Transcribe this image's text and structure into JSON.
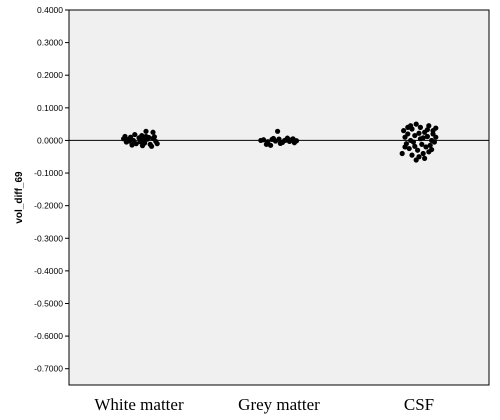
{
  "chart_data": {
    "type": "scatter",
    "ylabel": "vol_diff_69",
    "xlabel": "",
    "title": "",
    "categories": [
      "White matter",
      "Grey matter",
      "CSF"
    ],
    "ylim": [
      -0.75,
      0.4
    ],
    "yticks": [
      "0.4000",
      "0.3000",
      "0.2000",
      "0.1000",
      "0.0000",
      "-0.1000",
      "-0.2000",
      "-0.3000",
      "-0.4000",
      "-0.5000",
      "-0.6000",
      "-0.7000"
    ],
    "reference_line": 0.0,
    "grid": false,
    "points": [
      [
        {
          "jitter": -0.22,
          "y": 0.005
        },
        {
          "jitter": -0.18,
          "y": -0.005
        },
        {
          "jitter": -0.12,
          "y": 0.01
        },
        {
          "jitter": -0.08,
          "y": 0.0
        },
        {
          "jitter": -0.04,
          "y": -0.01
        },
        {
          "jitter": 0.0,
          "y": 0.008
        },
        {
          "jitter": 0.04,
          "y": 0.015
        },
        {
          "jitter": 0.08,
          "y": -0.008
        },
        {
          "jitter": 0.12,
          "y": 0.004
        },
        {
          "jitter": 0.16,
          "y": -0.012
        },
        {
          "jitter": 0.2,
          "y": 0.006
        },
        {
          "jitter": 0.24,
          "y": -0.003
        },
        {
          "jitter": -0.2,
          "y": 0.012
        },
        {
          "jitter": -0.1,
          "y": -0.014
        },
        {
          "jitter": 0.02,
          "y": -0.004
        },
        {
          "jitter": 0.1,
          "y": 0.012
        },
        {
          "jitter": 0.18,
          "y": -0.018
        },
        {
          "jitter": -0.14,
          "y": -0.002
        },
        {
          "jitter": 0.06,
          "y": 0.003
        },
        {
          "jitter": 0.14,
          "y": 0.009
        },
        {
          "jitter": -0.06,
          "y": 0.018
        },
        {
          "jitter": 0.22,
          "y": 0.011
        },
        {
          "jitter": 0.26,
          "y": -0.01
        },
        {
          "jitter": 0.1,
          "y": 0.028
        },
        {
          "jitter": 0.2,
          "y": 0.025
        },
        {
          "jitter": 0.05,
          "y": -0.016
        },
        {
          "jitter": -0.16,
          "y": 0.002
        }
      ],
      [
        {
          "jitter": -0.22,
          "y": 0.002
        },
        {
          "jitter": -0.16,
          "y": -0.004
        },
        {
          "jitter": -0.1,
          "y": 0.003
        },
        {
          "jitter": -0.05,
          "y": -0.002
        },
        {
          "jitter": 0.0,
          "y": 0.004
        },
        {
          "jitter": 0.05,
          "y": -0.006
        },
        {
          "jitter": 0.1,
          "y": 0.001
        },
        {
          "jitter": 0.15,
          "y": -0.003
        },
        {
          "jitter": 0.2,
          "y": 0.005
        },
        {
          "jitter": 0.25,
          "y": -0.001
        },
        {
          "jitter": -0.18,
          "y": -0.012
        },
        {
          "jitter": -0.08,
          "y": 0.006
        },
        {
          "jitter": 0.02,
          "y": -0.009
        },
        {
          "jitter": 0.12,
          "y": 0.007
        },
        {
          "jitter": 0.22,
          "y": -0.007
        },
        {
          "jitter": -0.02,
          "y": 0.028
        },
        {
          "jitter": -0.12,
          "y": -0.015
        },
        {
          "jitter": 0.08,
          "y": 0.0
        },
        {
          "jitter": 0.18,
          "y": 0.002
        },
        {
          "jitter": -0.26,
          "y": 0.0
        }
      ],
      [
        {
          "jitter": -0.22,
          "y": 0.03
        },
        {
          "jitter": -0.16,
          "y": 0.02
        },
        {
          "jitter": -0.1,
          "y": 0.035
        },
        {
          "jitter": -0.04,
          "y": 0.05
        },
        {
          "jitter": 0.02,
          "y": 0.04
        },
        {
          "jitter": 0.08,
          "y": 0.025
        },
        {
          "jitter": 0.14,
          "y": 0.045
        },
        {
          "jitter": 0.2,
          "y": 0.02
        },
        {
          "jitter": 0.24,
          "y": 0.01
        },
        {
          "jitter": -0.2,
          "y": 0.01
        },
        {
          "jitter": -0.12,
          "y": 0.0
        },
        {
          "jitter": -0.06,
          "y": 0.015
        },
        {
          "jitter": 0.0,
          "y": 0.022
        },
        {
          "jitter": 0.06,
          "y": 0.008
        },
        {
          "jitter": 0.12,
          "y": 0.012
        },
        {
          "jitter": 0.18,
          "y": 0.0
        },
        {
          "jitter": -0.18,
          "y": -0.01
        },
        {
          "jitter": -0.08,
          "y": -0.005
        },
        {
          "jitter": 0.04,
          "y": -0.012
        },
        {
          "jitter": 0.1,
          "y": -0.02
        },
        {
          "jitter": 0.16,
          "y": -0.015
        },
        {
          "jitter": 0.22,
          "y": -0.005
        },
        {
          "jitter": -0.14,
          "y": -0.025
        },
        {
          "jitter": -0.02,
          "y": -0.03
        },
        {
          "jitter": 0.06,
          "y": -0.04
        },
        {
          "jitter": 0.14,
          "y": -0.035
        },
        {
          "jitter": -0.1,
          "y": -0.045
        },
        {
          "jitter": 0.0,
          "y": -0.05
        },
        {
          "jitter": 0.08,
          "y": -0.055
        },
        {
          "jitter": -0.04,
          "y": -0.06
        },
        {
          "jitter": -0.24,
          "y": -0.04
        },
        {
          "jitter": 0.2,
          "y": 0.03
        },
        {
          "jitter": -0.16,
          "y": 0.04
        },
        {
          "jitter": 0.12,
          "y": 0.033
        },
        {
          "jitter": -0.06,
          "y": -0.018
        },
        {
          "jitter": 0.02,
          "y": 0.005
        },
        {
          "jitter": -0.2,
          "y": -0.02
        },
        {
          "jitter": 0.18,
          "y": -0.028
        },
        {
          "jitter": 0.24,
          "y": 0.038
        },
        {
          "jitter": -0.12,
          "y": 0.045
        }
      ]
    ]
  },
  "colors": {
    "plot_background": "#f0f0f0",
    "marker": "#000000",
    "axis": "#000000",
    "reference_line": "#000000"
  }
}
